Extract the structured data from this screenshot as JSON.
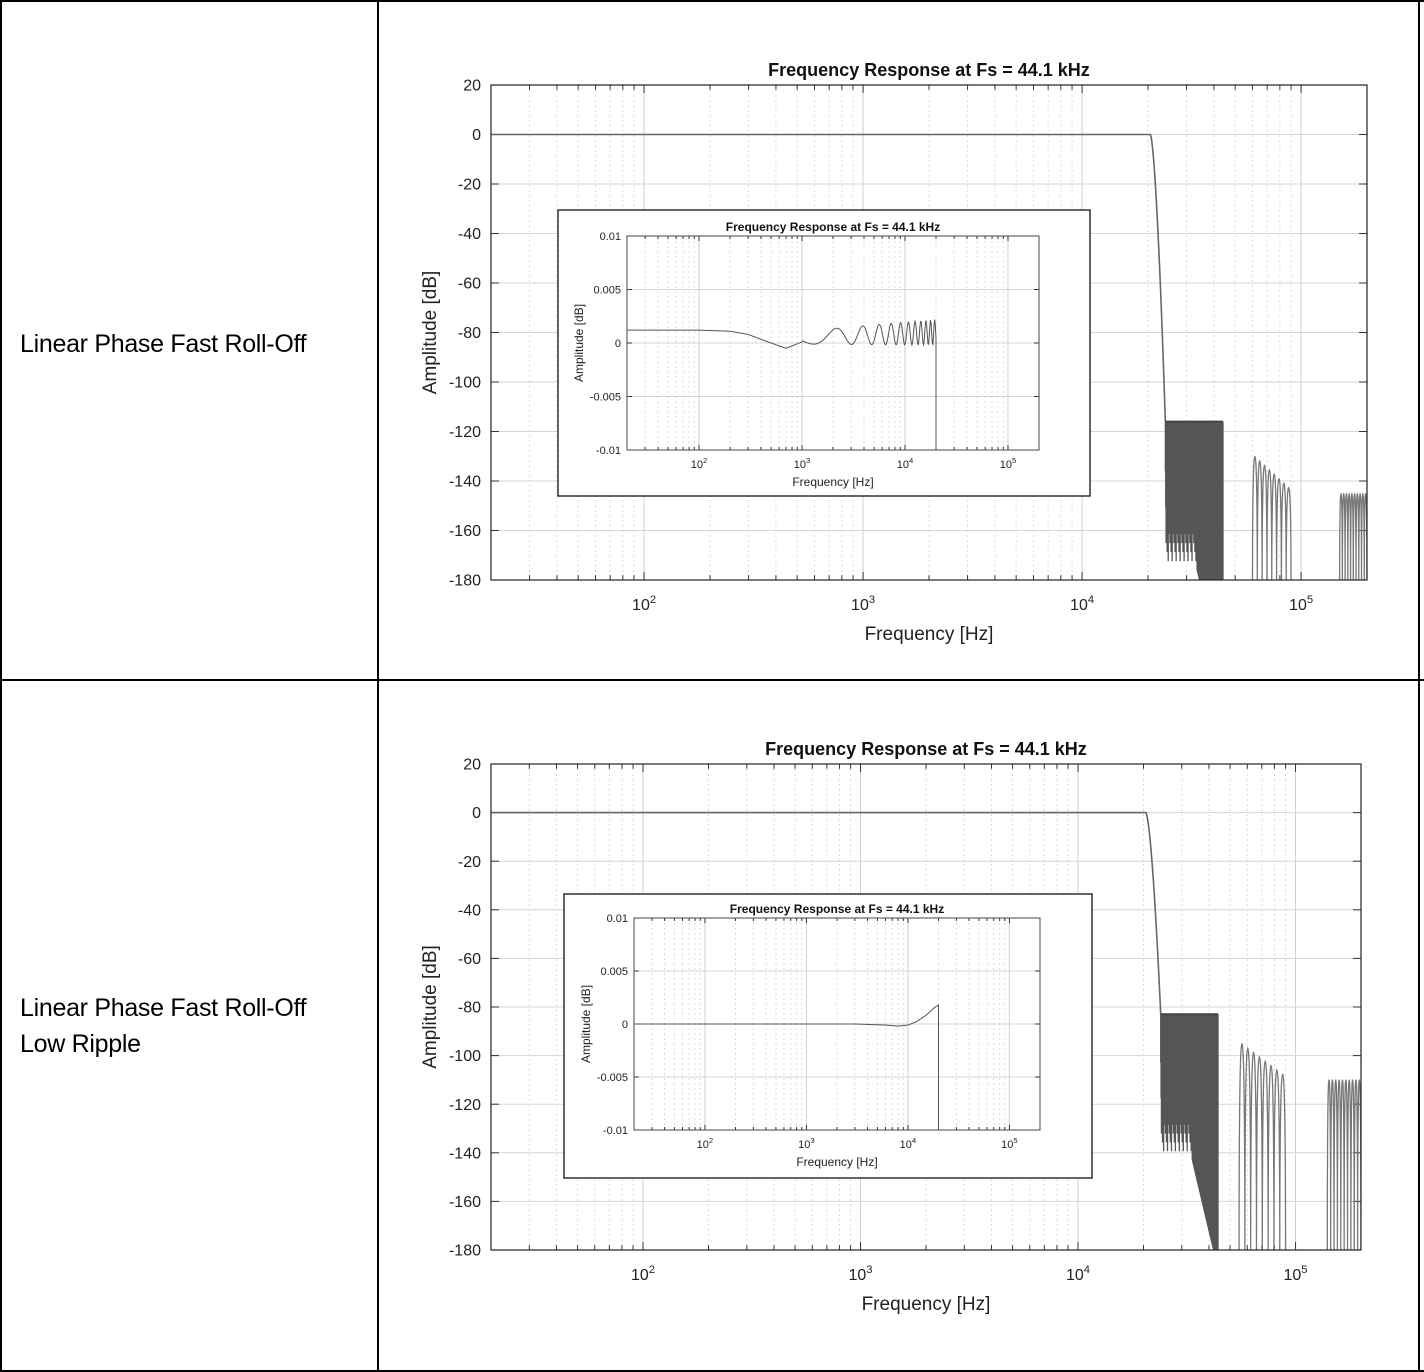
{
  "table": {
    "rows": [
      {
        "label_lines": [
          "Linear Phase Fast Roll-Off"
        ]
      },
      {
        "label_lines": [
          "Linear Phase Fast Roll-Off",
          "Low Ripple"
        ]
      }
    ]
  },
  "chart_data": [
    {
      "type": "line",
      "title": "Frequency Response at Fs = 44.1 kHz",
      "xlabel": "Frequency [Hz]",
      "ylabel": "Amplitude [dB]",
      "xscale": "log",
      "xlim": [
        20,
        200000
      ],
      "ylim": [
        -180,
        20
      ],
      "yticks": [
        "20",
        "0",
        "-20",
        "-40",
        "-60",
        "-80",
        "-100",
        "-120",
        "-140",
        "-160",
        "-180"
      ],
      "xticks": [
        {
          "base": "10",
          "exp": "2"
        },
        {
          "base": "10",
          "exp": "3"
        },
        {
          "base": "10",
          "exp": "4"
        },
        {
          "base": "10",
          "exp": "5"
        }
      ],
      "grid": true,
      "series": [
        {
          "passband_db": 0,
          "cutoff_hz": 20500,
          "stopband_band1": {
            "from_hz": 24000,
            "to_hz": 44000,
            "level_db": -116
          },
          "stopband_lobes": {
            "from_hz": 60000,
            "to_hz": 90000,
            "peak_db": -130
          },
          "stopband_band2": {
            "from_hz": 150000,
            "to_hz": 200000,
            "level_db": -145
          }
        }
      ],
      "inset": {
        "title": "Frequency Response at Fs = 44.1 kHz",
        "xlabel": "Frequency [Hz]",
        "ylabel": "Amplitude [dB]",
        "xscale": "log",
        "xlim": [
          20,
          200000
        ],
        "ylim": [
          -0.01,
          0.01
        ],
        "yticks": [
          "0.01",
          "0.005",
          "0",
          "-0.005",
          "-0.01"
        ],
        "xticks": [
          {
            "base": "10",
            "exp": "2"
          },
          {
            "base": "10",
            "exp": "3"
          },
          {
            "base": "10",
            "exp": "4"
          },
          {
            "base": "10",
            "exp": "5"
          }
        ],
        "grid": true,
        "series": [
          {
            "x": [
              20,
              100,
              200,
              300,
              500,
              700,
              1000,
              1400,
              2000,
              3000,
              5000,
              8000,
              12000,
              16000,
              20000
            ],
            "y": [
              0.0012,
              0.0012,
              0.0011,
              0.0008,
              0.0,
              -0.0005,
              0.0001,
              0.0011,
              -0.0003,
              0.0009,
              0.0002,
              0.0012,
              0.0008,
              0.002,
              0.003
            ],
            "ripple": "oscillating, increasing frequency and amplitude toward cutoff"
          }
        ]
      }
    },
    {
      "type": "line",
      "title": "Frequency Response at Fs = 44.1 kHz",
      "xlabel": "Frequency [Hz]",
      "ylabel": "Amplitude [dB]",
      "xscale": "log",
      "xlim": [
        20,
        200000
      ],
      "ylim": [
        -180,
        20
      ],
      "yticks": [
        "20",
        "0",
        "-20",
        "-40",
        "-60",
        "-80",
        "-100",
        "-120",
        "-140",
        "-160",
        "-180"
      ],
      "xticks": [
        {
          "base": "10",
          "exp": "2"
        },
        {
          "base": "10",
          "exp": "3"
        },
        {
          "base": "10",
          "exp": "4"
        },
        {
          "base": "10",
          "exp": "5"
        }
      ],
      "grid": true,
      "series": [
        {
          "passband_db": 0,
          "cutoff_hz": 20500,
          "stopband_band1": {
            "from_hz": 24000,
            "to_hz": 44000,
            "level_db": -83
          },
          "stopband_lobes": {
            "from_hz": 55000,
            "to_hz": 90000,
            "peak_db": -95
          },
          "stopband_band2": {
            "from_hz": 140000,
            "to_hz": 200000,
            "level_db": -110
          }
        }
      ],
      "inset": {
        "title": "Frequency Response at Fs = 44.1 kHz",
        "xlabel": "Frequency [Hz]",
        "ylabel": "Amplitude [dB]",
        "xscale": "log",
        "xlim": [
          20,
          200000
        ],
        "ylim": [
          -0.01,
          0.01
        ],
        "yticks": [
          "0.01",
          "0.005",
          "0",
          "-0.005",
          "-0.01"
        ],
        "xticks": [
          {
            "base": "10",
            "exp": "2"
          },
          {
            "base": "10",
            "exp": "3"
          },
          {
            "base": "10",
            "exp": "4"
          },
          {
            "base": "10",
            "exp": "5"
          }
        ],
        "grid": true,
        "series": [
          {
            "x": [
              20,
              100,
              1000,
              3000,
              6000,
              8000,
              10000,
              12000,
              15000,
              18000,
              20000
            ],
            "y": [
              0.0,
              0.0,
              0.0,
              0.0,
              -0.0001,
              -0.0002,
              -0.0001,
              0.0002,
              0.0008,
              0.0015,
              0.0018
            ],
            "ripple": "flat with small rise near cutoff"
          }
        ]
      }
    }
  ]
}
